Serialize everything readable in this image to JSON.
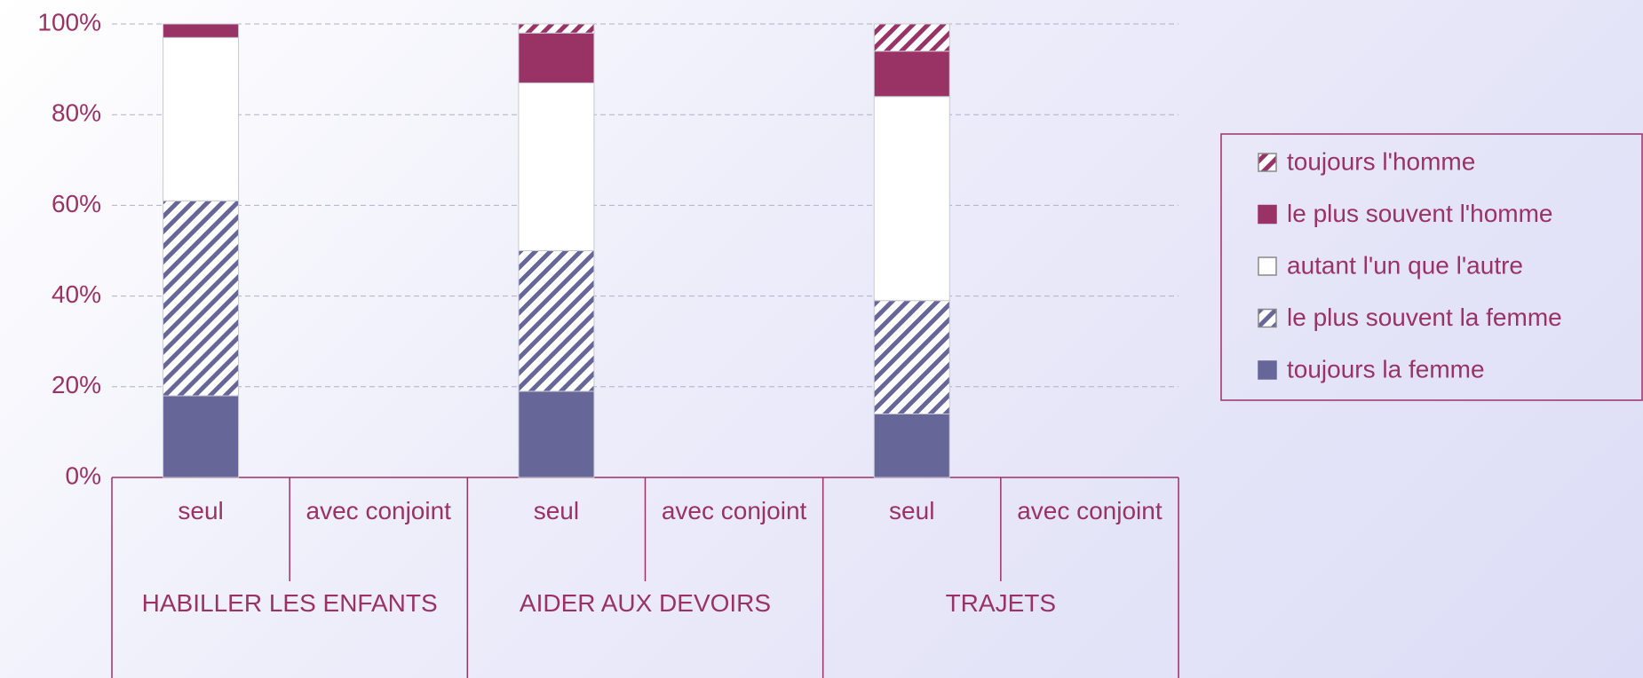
{
  "chart_data": {
    "type": "stacked-bar",
    "groups": [
      "HABILLER LES ENFANTS",
      "AIDER AUX DEVOIRS",
      "TRAJETS"
    ],
    "categories": [
      "seul",
      "avec conjoint",
      "seul",
      "avec conjoint",
      "seul",
      "avec conjoint"
    ],
    "series": [
      {
        "name": "toujours la femme",
        "color": "#666699",
        "hatched": false,
        "values": [
          18,
          null,
          19,
          null,
          14,
          null
        ]
      },
      {
        "name": "le plus souvent la femme",
        "color": "#666699",
        "hatched": true,
        "values": [
          43,
          null,
          31,
          null,
          25,
          null
        ]
      },
      {
        "name": "autant l'un que l'autre",
        "color": "#ffffff",
        "hatched": false,
        "values": [
          36,
          null,
          37,
          null,
          45,
          null
        ]
      },
      {
        "name": "le plus souvent l'homme",
        "color": "#993366",
        "hatched": false,
        "values": [
          3,
          null,
          11,
          null,
          10,
          null
        ]
      },
      {
        "name": "toujours l'homme",
        "color": "#993366",
        "hatched": true,
        "values": [
          0,
          null,
          2,
          null,
          6,
          null
        ]
      }
    ],
    "ylim": [
      0,
      100
    ],
    "yticks": [
      {
        "value": 0,
        "label": "0%"
      },
      {
        "value": 20,
        "label": "20%"
      },
      {
        "value": 40,
        "label": "40%"
      },
      {
        "value": 60,
        "label": "60%"
      },
      {
        "value": 80,
        "label": "80%"
      },
      {
        "value": 100,
        "label": "100%"
      }
    ],
    "grid": true,
    "legend": "right"
  }
}
